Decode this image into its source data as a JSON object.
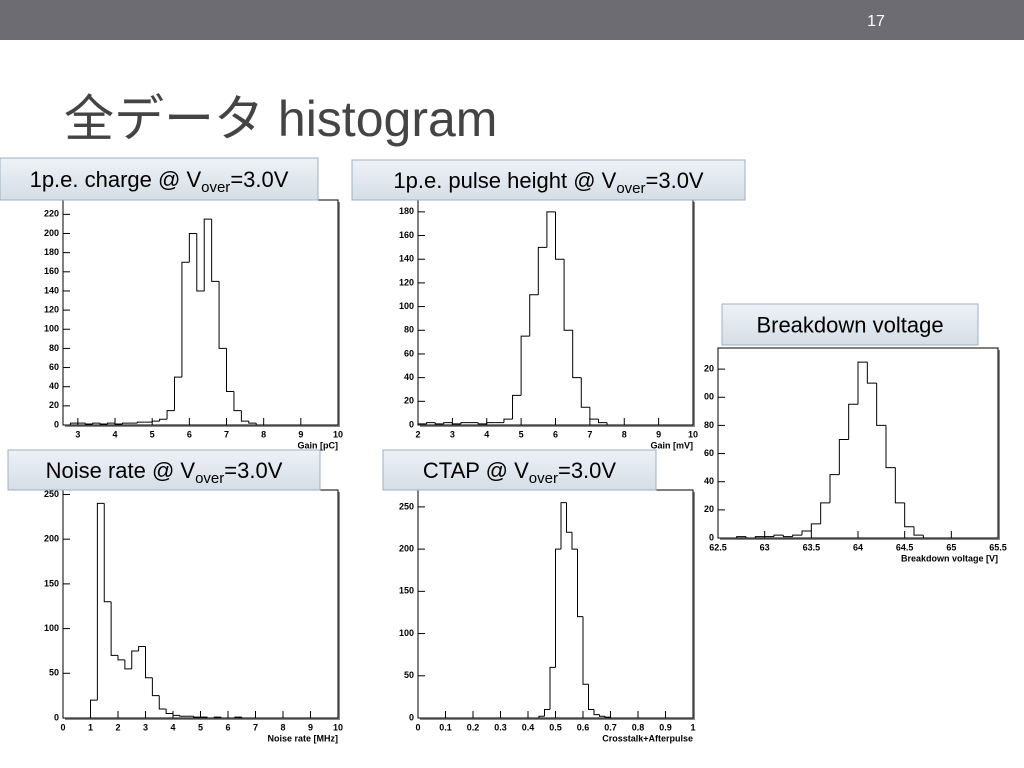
{
  "slide": {
    "page": "17",
    "title": "全データ histogram"
  },
  "chart_data": [
    {
      "type": "histogram",
      "title": [
        "1p.e. charge @ V",
        "over",
        "=3.0V"
      ],
      "xlabel": "Gain [pC]",
      "bins": [
        2.6,
        2.8,
        3.0,
        3.2,
        3.4,
        3.6,
        3.8,
        4.0,
        4.2,
        4.4,
        4.6,
        4.8,
        5.0,
        5.2,
        5.4,
        5.6,
        5.8,
        6.0,
        6.2,
        6.4,
        6.6,
        6.8,
        7.0,
        7.2,
        7.4,
        7.6,
        7.8,
        8.0,
        8.2,
        8.4,
        8.6,
        8.8,
        9.0,
        9.2,
        9.4,
        9.6,
        9.8
      ],
      "values": [
        0,
        2,
        2,
        1,
        2,
        1,
        2,
        1,
        2,
        2,
        3,
        3,
        4,
        6,
        15,
        50,
        170,
        200,
        140,
        215,
        150,
        80,
        35,
        15,
        4,
        2,
        0,
        0,
        0,
        0,
        0,
        0,
        0,
        0,
        0,
        0
      ],
      "xlim": [
        2.6,
        10
      ],
      "xticks": [
        3,
        4,
        5,
        6,
        7,
        8,
        9,
        10
      ],
      "ylim": [
        0,
        235
      ],
      "yticks": [
        0,
        20,
        40,
        60,
        80,
        100,
        120,
        140,
        160,
        180,
        200,
        220
      ],
      "color": "#000000"
    },
    {
      "type": "histogram",
      "title": [
        "1p.e. pulse height @ V",
        "over",
        "=3.0V"
      ],
      "xlabel": "Gain [mV]",
      "bins": [
        2.0,
        2.25,
        2.5,
        2.75,
        3.0,
        3.25,
        3.5,
        3.75,
        4.0,
        4.25,
        4.5,
        4.75,
        5.0,
        5.25,
        5.5,
        5.75,
        6.0,
        6.25,
        6.5,
        6.75,
        7.0,
        7.25,
        7.5,
        7.75,
        8.0,
        8.25,
        8.5,
        8.75,
        9.0,
        9.25,
        9.5,
        9.75,
        10.0
      ],
      "values": [
        1,
        2,
        1,
        2,
        1,
        2,
        2,
        1,
        2,
        2,
        5,
        25,
        75,
        110,
        150,
        180,
        140,
        80,
        40,
        15,
        5,
        2,
        0,
        0,
        0,
        0,
        0,
        0,
        0,
        0,
        0,
        0
      ],
      "xlim": [
        2,
        10
      ],
      "xticks": [
        2,
        3,
        4,
        5,
        6,
        7,
        8,
        9,
        10
      ],
      "ylim": [
        0,
        190
      ],
      "yticks": [
        0,
        20,
        40,
        60,
        80,
        100,
        120,
        140,
        160,
        180
      ],
      "color": "#000000"
    },
    {
      "type": "histogram",
      "title": [
        "Breakdown voltage"
      ],
      "xlabel": "Breakdown voltage [V]",
      "bins": [
        62.5,
        62.6,
        62.7,
        62.8,
        62.9,
        63.0,
        63.1,
        63.2,
        63.3,
        63.4,
        63.5,
        63.6,
        63.7,
        63.8,
        63.9,
        64.0,
        64.1,
        64.2,
        64.3,
        64.4,
        64.5,
        64.6,
        64.7,
        64.8,
        64.9,
        65.0,
        65.1,
        65.2,
        65.3,
        65.4,
        65.5
      ],
      "values": [
        0,
        0,
        1,
        0,
        1,
        1,
        2,
        1,
        2,
        5,
        10,
        25,
        45,
        70,
        95,
        125,
        110,
        80,
        50,
        25,
        8,
        2,
        0,
        0,
        0,
        0,
        0,
        0,
        0,
        0
      ],
      "xlim": [
        62.5,
        65.5
      ],
      "xticks": [
        62.5,
        63,
        63.5,
        64,
        64.5,
        65,
        65.5
      ],
      "ylim": [
        0,
        135
      ],
      "yticks": [
        0,
        20,
        40,
        60,
        80,
        {
          "value": 100,
          "label": "00"
        },
        {
          "value": 120,
          "label": "20"
        }
      ],
      "color": "#000000"
    },
    {
      "type": "histogram",
      "title": [
        "Noise rate @ V",
        "over",
        "=3.0V"
      ],
      "xlabel": "Noise rate [MHz]",
      "bins": [
        0,
        0.25,
        0.5,
        0.75,
        1.0,
        1.25,
        1.5,
        1.75,
        2.0,
        2.25,
        2.5,
        2.75,
        3.0,
        3.25,
        3.5,
        3.75,
        4.0,
        4.25,
        4.5,
        4.75,
        5.0,
        5.25,
        5.5,
        5.75,
        6.0,
        6.25,
        6.5,
        6.75,
        7.0,
        7.25,
        7.5,
        7.75,
        8.0,
        8.25,
        8.5,
        8.75,
        9.0,
        9.25,
        9.5,
        9.75,
        10.0
      ],
      "values": [
        0,
        0,
        0,
        0,
        20,
        240,
        130,
        70,
        65,
        55,
        75,
        80,
        45,
        25,
        10,
        5,
        3,
        2,
        2,
        1,
        1,
        0,
        1,
        0,
        0,
        1,
        0,
        0,
        0,
        0,
        0,
        0,
        0,
        0,
        0,
        0,
        0,
        0,
        0,
        0
      ],
      "xlim": [
        0,
        10
      ],
      "xticks": [
        0,
        1,
        2,
        3,
        4,
        5,
        6,
        7,
        8,
        9,
        10
      ],
      "ylim": [
        0,
        255
      ],
      "yticks": [
        0,
        50,
        100,
        150,
        200,
        250
      ],
      "color": "#000000"
    },
    {
      "type": "histogram",
      "title": [
        "CTAP @ V",
        "over",
        "=3.0V"
      ],
      "xlabel": "Crosstalk+Afterpulse",
      "bins": [
        0,
        0.02,
        0.04,
        0.06,
        0.08,
        0.1,
        0.12,
        0.14,
        0.16,
        0.18,
        0.2,
        0.22,
        0.24,
        0.26,
        0.28,
        0.3,
        0.32,
        0.34,
        0.36,
        0.38,
        0.4,
        0.42,
        0.44,
        0.46,
        0.48,
        0.5,
        0.52,
        0.54,
        0.56,
        0.58,
        0.6,
        0.62,
        0.64,
        0.66,
        0.68,
        0.7,
        0.72,
        0.74,
        0.76,
        0.78,
        0.8,
        0.82,
        0.84,
        0.86,
        0.88,
        0.9,
        0.92,
        0.94,
        0.96,
        0.98,
        1.0
      ],
      "values": [
        0,
        0,
        0,
        0,
        0,
        0,
        0,
        0,
        0,
        0,
        0,
        0,
        0,
        0,
        0,
        0,
        0,
        0,
        0,
        0,
        0,
        0,
        2,
        10,
        60,
        200,
        255,
        220,
        200,
        120,
        40,
        10,
        4,
        2,
        1,
        0,
        0,
        0,
        0,
        0,
        0,
        0,
        0,
        0,
        0,
        0,
        0,
        0,
        0,
        0
      ],
      "xlim": [
        0,
        1
      ],
      "xticks": [
        0,
        0.1,
        0.2,
        0.3,
        0.4,
        0.5,
        0.6,
        0.7,
        0.8,
        0.9,
        1
      ],
      "ylim": [
        0,
        270
      ],
      "yticks": [
        0,
        50,
        100,
        150,
        200,
        250
      ],
      "color": "#000000"
    }
  ]
}
